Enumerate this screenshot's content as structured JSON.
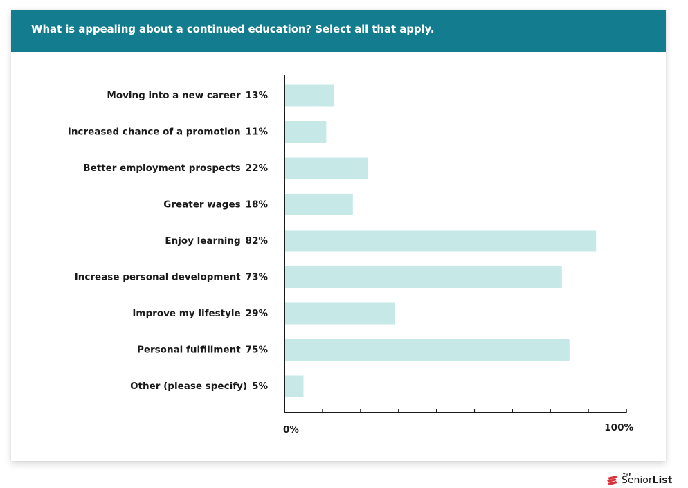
{
  "header": {
    "title": "What is appealing about a continued education? Select all that apply."
  },
  "chart_data": {
    "type": "bar",
    "orientation": "horizontal",
    "title": "What is appealing about a continued education? Select all that apply.",
    "categories": [
      "Moving into a new career",
      "Increased chance of a promotion",
      "Better employment prospects",
      "Greater wages",
      "Enjoy learning",
      "Increase personal development",
      "Improve my lifestyle",
      "Personal fulfillment",
      "Other (please specify)"
    ],
    "values": [
      13,
      11,
      22,
      18,
      82,
      73,
      29,
      75,
      5
    ],
    "value_labels": [
      "13%",
      "11%",
      "22%",
      "18%",
      "82%",
      "73%",
      "29%",
      "75%",
      "5%"
    ],
    "xlim": [
      0,
      100
    ],
    "x_tick_labels": [
      "0%",
      "100%"
    ],
    "grid": false,
    "legend": "none",
    "bar_color": "#c6e9e8",
    "axis_color": "#1a1a1a"
  },
  "colors": {
    "header_bg": "#137d8f",
    "header_text": "#ffffff",
    "logo_red": "#d9313a"
  },
  "logo": {
    "small": "THE",
    "part1": "Senior",
    "part2": "List",
    "icon": "senior-list-logo-icon"
  }
}
